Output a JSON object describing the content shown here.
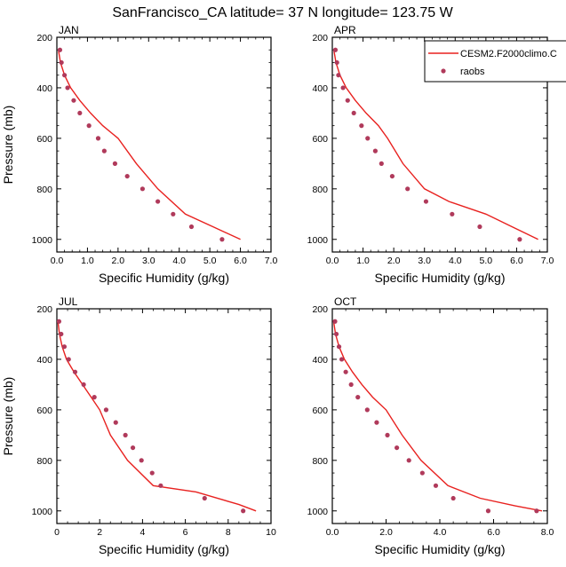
{
  "figure": {
    "title": "SanFrancisco_CA  latitude= 37 N longitude= 123.75 W"
  },
  "legend": {
    "model_label": "CESM2.F2000climo.C",
    "obs_label": "raobs"
  },
  "colors": {
    "model_line": "#e8211f",
    "obs_marker": "#b03a5b"
  },
  "chart_data": [
    {
      "type": "line",
      "title": "JAN",
      "xlabel": "Specific Humidity (g/kg)",
      "ylabel": "Pressure (mb)",
      "xlim": [
        0,
        7
      ],
      "ylim": [
        200,
        1050
      ],
      "y_inverted": true,
      "xticks": [
        "0.0",
        "1.0",
        "2.0",
        "3.0",
        "4.0",
        "5.0",
        "6.0",
        "7.0"
      ],
      "xticks_values": [
        0,
        1,
        2,
        3,
        4,
        5,
        6,
        7
      ],
      "yticks": [
        "200",
        "400",
        "600",
        "800",
        "1000"
      ],
      "series": [
        {
          "name": "CESM2.F2000climo.C",
          "kind": "line",
          "x": [
            0.05,
            0.12,
            0.25,
            0.45,
            0.75,
            1.1,
            1.5,
            2.0,
            2.6,
            3.3,
            4.2,
            5.1,
            6.0
          ],
          "y": [
            250,
            300,
            350,
            400,
            450,
            500,
            550,
            600,
            700,
            800,
            900,
            950,
            1000
          ]
        },
        {
          "name": "raobs",
          "kind": "markers",
          "x": [
            0.1,
            0.15,
            0.25,
            0.35,
            0.55,
            0.75,
            1.05,
            1.35,
            1.55,
            1.9,
            2.3,
            2.8,
            3.3,
            3.8,
            4.4,
            5.4
          ],
          "y": [
            250,
            300,
            350,
            400,
            450,
            500,
            550,
            600,
            650,
            700,
            750,
            800,
            850,
            900,
            950,
            1000
          ]
        }
      ]
    },
    {
      "type": "line",
      "title": "APR",
      "xlabel": "Specific Humidity (g/kg)",
      "ylabel": "",
      "xlim": [
        0,
        7
      ],
      "ylim": [
        200,
        1050
      ],
      "y_inverted": true,
      "xticks": [
        "0.0",
        "1.0",
        "2.0",
        "3.0",
        "4.0",
        "5.0",
        "6.0",
        "7.0"
      ],
      "xticks_values": [
        0,
        1,
        2,
        3,
        4,
        5,
        6,
        7
      ],
      "yticks": [
        "200",
        "400",
        "600",
        "800",
        "1000"
      ],
      "legend_position": "top-right",
      "series": [
        {
          "name": "CESM2.F2000climo.C",
          "kind": "line",
          "x": [
            0.05,
            0.12,
            0.25,
            0.45,
            0.75,
            1.1,
            1.5,
            1.8,
            2.3,
            3.0,
            3.8,
            5.0,
            6.7
          ],
          "y": [
            250,
            300,
            350,
            400,
            450,
            500,
            550,
            600,
            700,
            800,
            850,
            900,
            1000
          ]
        },
        {
          "name": "raobs",
          "kind": "markers",
          "x": [
            0.1,
            0.15,
            0.2,
            0.35,
            0.5,
            0.7,
            0.95,
            1.15,
            1.4,
            1.6,
            1.95,
            2.45,
            3.05,
            3.9,
            4.8,
            6.1
          ],
          "y": [
            250,
            300,
            350,
            400,
            450,
            500,
            550,
            600,
            650,
            700,
            750,
            800,
            850,
            900,
            950,
            1000
          ]
        }
      ]
    },
    {
      "type": "line",
      "title": "JUL",
      "xlabel": "Specific Humidity (g/kg)",
      "ylabel": "Pressure (mb)",
      "xlim": [
        0,
        10
      ],
      "ylim": [
        200,
        1050
      ],
      "y_inverted": true,
      "xticks": [
        "0",
        "2",
        "4",
        "6",
        "8",
        "10"
      ],
      "xticks_values": [
        0,
        2,
        4,
        6,
        8,
        10
      ],
      "yticks": [
        "200",
        "400",
        "600",
        "800",
        "1000"
      ],
      "series": [
        {
          "name": "CESM2.F2000climo.C",
          "kind": "line",
          "x": [
            0.05,
            0.12,
            0.25,
            0.45,
            0.8,
            1.2,
            1.6,
            2.0,
            2.5,
            3.3,
            4.5,
            6.5,
            8.5,
            9.3
          ],
          "y": [
            250,
            300,
            350,
            400,
            450,
            500,
            550,
            600,
            700,
            800,
            900,
            925,
            975,
            1000
          ]
        },
        {
          "name": "raobs",
          "kind": "markers",
          "x": [
            0.1,
            0.2,
            0.35,
            0.55,
            0.85,
            1.25,
            1.75,
            2.3,
            2.75,
            3.2,
            3.55,
            3.95,
            4.45,
            4.85,
            6.9,
            8.7
          ],
          "y": [
            250,
            300,
            350,
            400,
            450,
            500,
            550,
            600,
            650,
            700,
            750,
            800,
            850,
            900,
            950,
            1000
          ]
        }
      ]
    },
    {
      "type": "line",
      "title": "OCT",
      "xlabel": "Specific Humidity (g/kg)",
      "ylabel": "",
      "xlim": [
        0,
        8
      ],
      "ylim": [
        200,
        1050
      ],
      "y_inverted": true,
      "xticks": [
        "0.0",
        "2.0",
        "4.0",
        "6.0",
        "8.0"
      ],
      "xticks_values": [
        0,
        2,
        4,
        6,
        8
      ],
      "yticks": [
        "200",
        "400",
        "600",
        "800",
        "1000"
      ],
      "series": [
        {
          "name": "CESM2.F2000climo.C",
          "kind": "line",
          "x": [
            0.05,
            0.12,
            0.25,
            0.45,
            0.75,
            1.1,
            1.5,
            2.0,
            2.6,
            3.3,
            4.3,
            5.5,
            6.8,
            7.8
          ],
          "y": [
            250,
            300,
            350,
            400,
            450,
            500,
            550,
            600,
            700,
            800,
            900,
            950,
            980,
            1000
          ]
        },
        {
          "name": "raobs",
          "kind": "markers",
          "x": [
            0.1,
            0.15,
            0.25,
            0.35,
            0.5,
            0.7,
            0.95,
            1.3,
            1.65,
            2.05,
            2.4,
            2.85,
            3.35,
            3.85,
            4.5,
            5.8,
            7.6
          ],
          "y": [
            250,
            300,
            350,
            400,
            450,
            500,
            550,
            600,
            650,
            700,
            750,
            800,
            850,
            900,
            950,
            1000,
            1000
          ]
        }
      ]
    }
  ]
}
